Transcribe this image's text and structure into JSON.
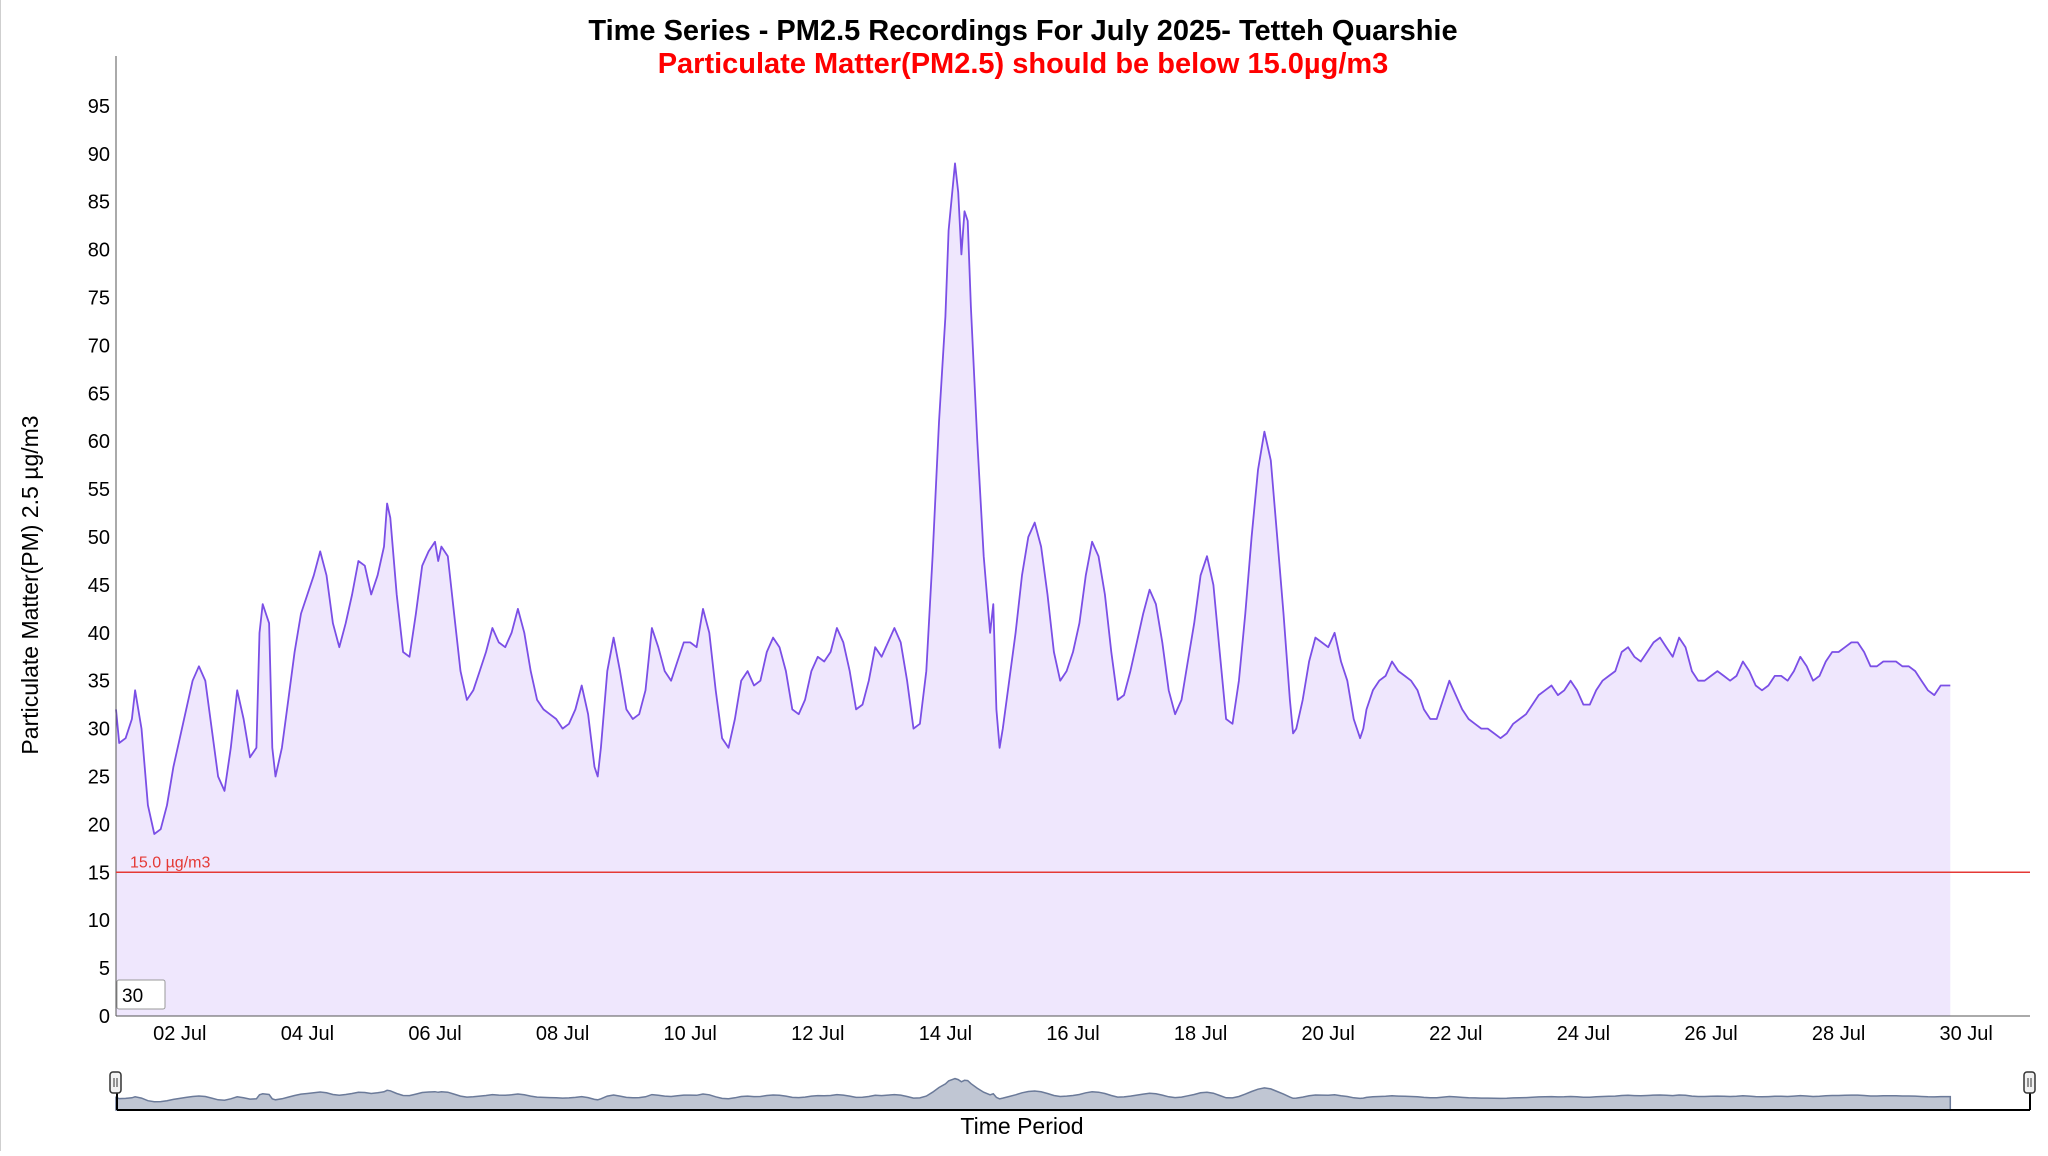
{
  "header": {
    "title": "Time Series - PM2.5 Recordings For July 2025- Tetteh Quarshie",
    "subtitle": "Particulate Matter(PM2.5) should be below 15.0µg/m3"
  },
  "controls": {
    "zoom_value": "30"
  },
  "colors": {
    "line": "#7b4fe6",
    "fill": "#efe7fd",
    "threshold": "#e53935",
    "subtitle": "#ff0000",
    "navigator_line": "#6b7a99",
    "navigator_fill": "#c0c6d3"
  },
  "chart_data": {
    "type": "area",
    "title": "Time Series - PM2.5 Recordings For July 2025- Tetteh Quarshie",
    "subtitle": "Particulate Matter(PM2.5) should be below 15.0µg/m3",
    "xlabel": "Time Period",
    "ylabel": "Particulate Matter(PM) 2.5 µg/m3",
    "ylim": [
      0,
      100
    ],
    "yticks": [
      0,
      5,
      10,
      15,
      20,
      25,
      30,
      35,
      40,
      45,
      50,
      55,
      60,
      65,
      70,
      75,
      80,
      85,
      90,
      95
    ],
    "xlim_day": [
      1.0,
      31.0
    ],
    "xticks": [
      {
        "day": 2,
        "label": "02 Jul"
      },
      {
        "day": 4,
        "label": "04 Jul"
      },
      {
        "day": 6,
        "label": "06 Jul"
      },
      {
        "day": 8,
        "label": "08 Jul"
      },
      {
        "day": 10,
        "label": "10 Jul"
      },
      {
        "day": 12,
        "label": "12 Jul"
      },
      {
        "day": 14,
        "label": "14 Jul"
      },
      {
        "day": 16,
        "label": "16 Jul"
      },
      {
        "day": 18,
        "label": "18 Jul"
      },
      {
        "day": 20,
        "label": "20 Jul"
      },
      {
        "day": 22,
        "label": "22 Jul"
      },
      {
        "day": 24,
        "label": "24 Jul"
      },
      {
        "day": 26,
        "label": "26 Jul"
      },
      {
        "day": 28,
        "label": "28 Jul"
      },
      {
        "day": 30,
        "label": "30 Jul"
      }
    ],
    "threshold": {
      "value": 15.0,
      "label": "15.0 µg/m3"
    },
    "grid": false,
    "legend": "none",
    "series": [
      {
        "x_unit": "day of July 2025",
        "points": [
          [
            1.0,
            32
          ],
          [
            1.05,
            28.5
          ],
          [
            1.15,
            29
          ],
          [
            1.25,
            31
          ],
          [
            1.3,
            34
          ],
          [
            1.4,
            30
          ],
          [
            1.5,
            22
          ],
          [
            1.6,
            19
          ],
          [
            1.7,
            19.5
          ],
          [
            1.8,
            22
          ],
          [
            1.9,
            26
          ],
          [
            2.0,
            29
          ],
          [
            2.1,
            32
          ],
          [
            2.2,
            35
          ],
          [
            2.3,
            36.5
          ],
          [
            2.4,
            35
          ],
          [
            2.5,
            30
          ],
          [
            2.6,
            25
          ],
          [
            2.7,
            23.5
          ],
          [
            2.8,
            28
          ],
          [
            2.9,
            34
          ],
          [
            3.0,
            31
          ],
          [
            3.1,
            27
          ],
          [
            3.2,
            28
          ],
          [
            3.25,
            40
          ],
          [
            3.3,
            43
          ],
          [
            3.4,
            41
          ],
          [
            3.45,
            28
          ],
          [
            3.5,
            25
          ],
          [
            3.6,
            28
          ],
          [
            3.7,
            33
          ],
          [
            3.8,
            38
          ],
          [
            3.9,
            42
          ],
          [
            4.0,
            44
          ],
          [
            4.1,
            46
          ],
          [
            4.2,
            48.5
          ],
          [
            4.3,
            46
          ],
          [
            4.4,
            41
          ],
          [
            4.5,
            38.5
          ],
          [
            4.6,
            41
          ],
          [
            4.7,
            44
          ],
          [
            4.8,
            47.5
          ],
          [
            4.9,
            47
          ],
          [
            5.0,
            44
          ],
          [
            5.1,
            46
          ],
          [
            5.2,
            49
          ],
          [
            5.25,
            53.5
          ],
          [
            5.3,
            52
          ],
          [
            5.4,
            44
          ],
          [
            5.5,
            38
          ],
          [
            5.6,
            37.5
          ],
          [
            5.7,
            42
          ],
          [
            5.8,
            47
          ],
          [
            5.9,
            48.5
          ],
          [
            6.0,
            49.5
          ],
          [
            6.05,
            47.5
          ],
          [
            6.1,
            49
          ],
          [
            6.2,
            48
          ],
          [
            6.3,
            42
          ],
          [
            6.4,
            36
          ],
          [
            6.5,
            33
          ],
          [
            6.6,
            34
          ],
          [
            6.7,
            36
          ],
          [
            6.8,
            38
          ],
          [
            6.9,
            40.5
          ],
          [
            7.0,
            39
          ],
          [
            7.1,
            38.5
          ],
          [
            7.2,
            40
          ],
          [
            7.3,
            42.5
          ],
          [
            7.4,
            40
          ],
          [
            7.5,
            36
          ],
          [
            7.6,
            33
          ],
          [
            7.7,
            32
          ],
          [
            7.8,
            31.5
          ],
          [
            7.9,
            31
          ],
          [
            8.0,
            30
          ],
          [
            8.1,
            30.5
          ],
          [
            8.2,
            32
          ],
          [
            8.3,
            34.5
          ],
          [
            8.4,
            31.5
          ],
          [
            8.5,
            26
          ],
          [
            8.55,
            25
          ],
          [
            8.6,
            28
          ],
          [
            8.7,
            36
          ],
          [
            8.8,
            39.5
          ],
          [
            8.9,
            36
          ],
          [
            9.0,
            32
          ],
          [
            9.1,
            31
          ],
          [
            9.2,
            31.5
          ],
          [
            9.3,
            34
          ],
          [
            9.4,
            40.5
          ],
          [
            9.5,
            38.5
          ],
          [
            9.6,
            36
          ],
          [
            9.7,
            35
          ],
          [
            9.8,
            37
          ],
          [
            9.9,
            39
          ],
          [
            10.0,
            39
          ],
          [
            10.1,
            38.5
          ],
          [
            10.2,
            42.5
          ],
          [
            10.3,
            40
          ],
          [
            10.4,
            34
          ],
          [
            10.5,
            29
          ],
          [
            10.6,
            28
          ],
          [
            10.7,
            31
          ],
          [
            10.8,
            35
          ],
          [
            10.9,
            36
          ],
          [
            11.0,
            34.5
          ],
          [
            11.1,
            35
          ],
          [
            11.2,
            38
          ],
          [
            11.3,
            39.5
          ],
          [
            11.4,
            38.5
          ],
          [
            11.5,
            36
          ],
          [
            11.6,
            32
          ],
          [
            11.7,
            31.5
          ],
          [
            11.8,
            33
          ],
          [
            11.9,
            36
          ],
          [
            12.0,
            37.5
          ],
          [
            12.1,
            37
          ],
          [
            12.2,
            38
          ],
          [
            12.3,
            40.5
          ],
          [
            12.4,
            39
          ],
          [
            12.5,
            36
          ],
          [
            12.6,
            32
          ],
          [
            12.7,
            32.5
          ],
          [
            12.8,
            35
          ],
          [
            12.9,
            38.5
          ],
          [
            13.0,
            37.5
          ],
          [
            13.1,
            39
          ],
          [
            13.2,
            40.5
          ],
          [
            13.3,
            39
          ],
          [
            13.4,
            35
          ],
          [
            13.5,
            30
          ],
          [
            13.6,
            30.5
          ],
          [
            13.7,
            36
          ],
          [
            13.8,
            48
          ],
          [
            13.9,
            62
          ],
          [
            14.0,
            73
          ],
          [
            14.05,
            82
          ],
          [
            14.15,
            89
          ],
          [
            14.2,
            86
          ],
          [
            14.25,
            79.5
          ],
          [
            14.3,
            84
          ],
          [
            14.35,
            83
          ],
          [
            14.4,
            74
          ],
          [
            14.5,
            60
          ],
          [
            14.6,
            48
          ],
          [
            14.7,
            40
          ],
          [
            14.75,
            43
          ],
          [
            14.8,
            32
          ],
          [
            14.85,
            28
          ],
          [
            14.9,
            30
          ],
          [
            15.0,
            35
          ],
          [
            15.1,
            40
          ],
          [
            15.2,
            46
          ],
          [
            15.3,
            50
          ],
          [
            15.4,
            51.5
          ],
          [
            15.5,
            49
          ],
          [
            15.6,
            44
          ],
          [
            15.7,
            38
          ],
          [
            15.8,
            35
          ],
          [
            15.9,
            36
          ],
          [
            16.0,
            38
          ],
          [
            16.1,
            41
          ],
          [
            16.2,
            46
          ],
          [
            16.3,
            49.5
          ],
          [
            16.4,
            48
          ],
          [
            16.5,
            44
          ],
          [
            16.6,
            38
          ],
          [
            16.7,
            33
          ],
          [
            16.8,
            33.5
          ],
          [
            16.9,
            36
          ],
          [
            17.0,
            39
          ],
          [
            17.1,
            42
          ],
          [
            17.2,
            44.5
          ],
          [
            17.3,
            43
          ],
          [
            17.4,
            39
          ],
          [
            17.5,
            34
          ],
          [
            17.6,
            31.5
          ],
          [
            17.7,
            33
          ],
          [
            17.8,
            37
          ],
          [
            17.9,
            41
          ],
          [
            18.0,
            46
          ],
          [
            18.1,
            48
          ],
          [
            18.2,
            45
          ],
          [
            18.3,
            38
          ],
          [
            18.4,
            31
          ],
          [
            18.5,
            30.5
          ],
          [
            18.6,
            35
          ],
          [
            18.7,
            42
          ],
          [
            18.8,
            50
          ],
          [
            18.9,
            57
          ],
          [
            19.0,
            61
          ],
          [
            19.1,
            58
          ],
          [
            19.2,
            50
          ],
          [
            19.3,
            42
          ],
          [
            19.4,
            33
          ],
          [
            19.45,
            29.5
          ],
          [
            19.5,
            30
          ],
          [
            19.6,
            33
          ],
          [
            19.7,
            37
          ],
          [
            19.8,
            39.5
          ],
          [
            19.9,
            39
          ],
          [
            20.0,
            38.5
          ],
          [
            20.1,
            40
          ],
          [
            20.2,
            37
          ],
          [
            20.3,
            35
          ],
          [
            20.4,
            31
          ],
          [
            20.5,
            29
          ],
          [
            20.55,
            30
          ],
          [
            20.6,
            32
          ],
          [
            20.7,
            34
          ],
          [
            20.8,
            35
          ],
          [
            20.9,
            35.5
          ],
          [
            21.0,
            37
          ],
          [
            21.1,
            36
          ],
          [
            21.2,
            35.5
          ],
          [
            21.3,
            35
          ],
          [
            21.4,
            34
          ],
          [
            21.5,
            32
          ],
          [
            21.6,
            31
          ],
          [
            21.7,
            31
          ],
          [
            21.8,
            33
          ],
          [
            21.9,
            35
          ],
          [
            22.0,
            33.5
          ],
          [
            22.1,
            32
          ],
          [
            22.2,
            31
          ],
          [
            22.3,
            30.5
          ],
          [
            22.4,
            30
          ],
          [
            22.5,
            30
          ],
          [
            22.6,
            29.5
          ],
          [
            22.7,
            29
          ],
          [
            22.8,
            29.5
          ],
          [
            22.9,
            30.5
          ],
          [
            23.0,
            31
          ],
          [
            23.1,
            31.5
          ],
          [
            23.2,
            32.5
          ],
          [
            23.3,
            33.5
          ],
          [
            23.4,
            34
          ],
          [
            23.5,
            34.5
          ],
          [
            23.6,
            33.5
          ],
          [
            23.7,
            34
          ],
          [
            23.8,
            35
          ],
          [
            23.9,
            34
          ],
          [
            24.0,
            32.5
          ],
          [
            24.1,
            32.5
          ],
          [
            24.2,
            34
          ],
          [
            24.3,
            35
          ],
          [
            24.4,
            35.5
          ],
          [
            24.5,
            36
          ],
          [
            24.6,
            38
          ],
          [
            24.7,
            38.5
          ],
          [
            24.8,
            37.5
          ],
          [
            24.9,
            37
          ],
          [
            25.0,
            38
          ],
          [
            25.1,
            39
          ],
          [
            25.2,
            39.5
          ],
          [
            25.3,
            38.5
          ],
          [
            25.4,
            37.5
          ],
          [
            25.5,
            39.5
          ],
          [
            25.6,
            38.5
          ],
          [
            25.7,
            36
          ],
          [
            25.8,
            35
          ],
          [
            25.9,
            35
          ],
          [
            26.0,
            35.5
          ],
          [
            26.1,
            36
          ],
          [
            26.2,
            35.5
          ],
          [
            26.3,
            35
          ],
          [
            26.4,
            35.5
          ],
          [
            26.5,
            37
          ],
          [
            26.6,
            36
          ],
          [
            26.7,
            34.5
          ],
          [
            26.8,
            34
          ],
          [
            26.9,
            34.5
          ],
          [
            27.0,
            35.5
          ],
          [
            27.1,
            35.5
          ],
          [
            27.2,
            35
          ],
          [
            27.3,
            36
          ],
          [
            27.4,
            37.5
          ],
          [
            27.5,
            36.5
          ],
          [
            27.6,
            35
          ],
          [
            27.7,
            35.5
          ],
          [
            27.8,
            37
          ],
          [
            27.9,
            38
          ],
          [
            28.0,
            38
          ],
          [
            28.1,
            38.5
          ],
          [
            28.2,
            39
          ],
          [
            28.3,
            39
          ],
          [
            28.4,
            38
          ],
          [
            28.5,
            36.5
          ],
          [
            28.6,
            36.5
          ],
          [
            28.7,
            37
          ],
          [
            28.8,
            37
          ],
          [
            28.9,
            37
          ],
          [
            29.0,
            36.5
          ],
          [
            29.1,
            36.5
          ],
          [
            29.2,
            36
          ],
          [
            29.3,
            35
          ],
          [
            29.4,
            34
          ],
          [
            29.5,
            33.5
          ],
          [
            29.6,
            34.5
          ],
          [
            29.7,
            34.5
          ],
          [
            29.75,
            34.5
          ]
        ]
      }
    ]
  },
  "navigator": {
    "label": "Time Period"
  }
}
